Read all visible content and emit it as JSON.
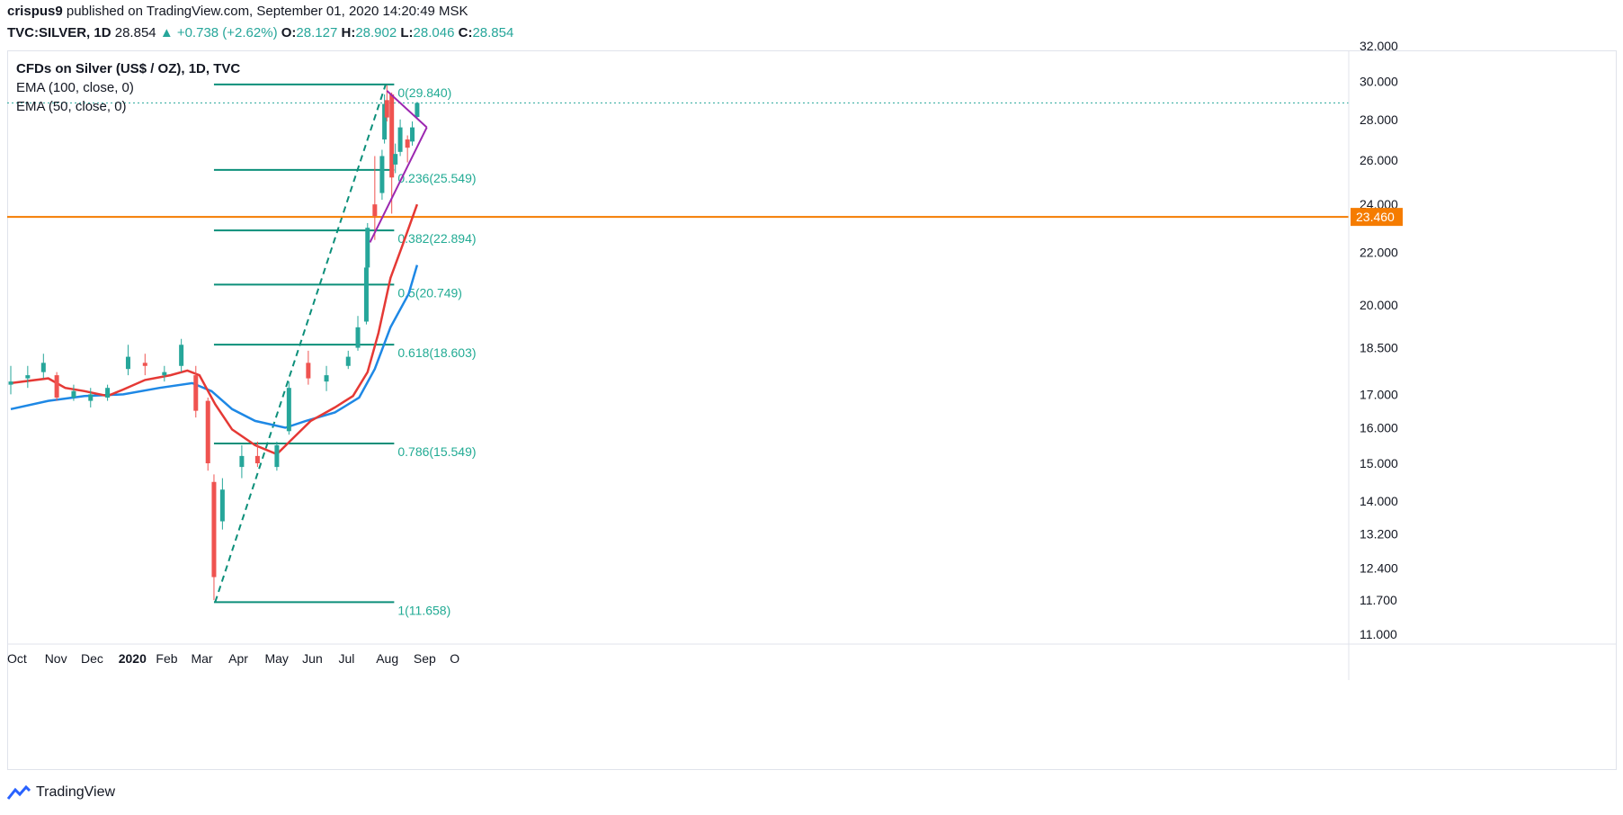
{
  "header": {
    "line1_user": "crispus9",
    "line1_rest": " published on TradingView.com, September 01, 2020 14:20:49 MSK",
    "symbol": "TVC:SILVER, 1D",
    "last": "28.854",
    "change": "▲ +0.738 (+2.62%)",
    "o_label": "O:",
    "o": "28.127",
    "h_label": "H:",
    "h": "28.902",
    "l_label": "L:",
    "l": "28.046",
    "c_label": "C:",
    "c": "28.854"
  },
  "legend": {
    "title": "CFDs on Silver (US$ / OZ), 1D, TVC",
    "ema100": "EMA (100, close, 0)",
    "ema50": "EMA (50, close, 0)"
  },
  "footer": {
    "brand": "TradingView"
  },
  "colors": {
    "up": "#26a69a",
    "down": "#ef5350",
    "ema50": "#e53935",
    "ema100": "#1e88e5",
    "fib": "#0c8f7a",
    "horizontal": "#f57c00",
    "triangle": "#9c27b0",
    "last_price": "#26a69a"
  },
  "chart_data": {
    "type": "candlestick",
    "y_axis_ticks": [
      "32.000",
      "30.000",
      "28.000",
      "26.000",
      "24.000",
      "22.000",
      "20.000",
      "18.500",
      "17.000",
      "16.000",
      "15.000",
      "14.000",
      "13.200",
      "12.400",
      "11.700",
      "11.000"
    ],
    "y_scale": "log",
    "x_axis_labels": [
      "Oct",
      "Nov",
      "Dec",
      "2020",
      "Feb",
      "Mar",
      "Apr",
      "May",
      "Jun",
      "Jul",
      "Aug",
      "Sep",
      "O"
    ],
    "horizontal_line": {
      "value": 23.46,
      "label": "23.460"
    },
    "last_price": 28.854,
    "fibonacci": [
      {
        "level": "0",
        "value": 29.84,
        "label": "0(29.840)"
      },
      {
        "level": "0.236",
        "value": 25.549,
        "label": "0.236(25.549)"
      },
      {
        "level": "0.382",
        "value": 22.894,
        "label": "0.382(22.894)"
      },
      {
        "level": "0.5",
        "value": 20.749,
        "label": "0.5(20.749)"
      },
      {
        "level": "0.618",
        "value": 18.603,
        "label": "0.618(18.603)"
      },
      {
        "level": "0.786",
        "value": 15.549,
        "label": "0.786(15.549)"
      },
      {
        "level": "1",
        "value": 11.658,
        "label": "1(11.658)"
      }
    ],
    "fib_trend": {
      "from": {
        "date": "2020-03-18",
        "price": 11.658
      },
      "to": {
        "date": "2020-08-06",
        "price": 29.84
      }
    },
    "triangle": {
      "upper": [
        {
          "date": "2020-08-07",
          "price": 29.5
        },
        {
          "date": "2020-09-09",
          "price": 27.6
        }
      ],
      "lower": [
        {
          "date": "2020-07-24",
          "price": 22.4
        },
        {
          "date": "2020-09-09",
          "price": 27.6
        }
      ]
    },
    "ema50": [
      {
        "date": "2019-10-01",
        "v": 17.35
      },
      {
        "date": "2019-11-01",
        "v": 17.5
      },
      {
        "date": "2019-11-15",
        "v": 17.2
      },
      {
        "date": "2019-12-01",
        "v": 17.1
      },
      {
        "date": "2019-12-20",
        "v": 16.95
      },
      {
        "date": "2020-01-02",
        "v": 17.15
      },
      {
        "date": "2020-01-20",
        "v": 17.45
      },
      {
        "date": "2020-02-10",
        "v": 17.6
      },
      {
        "date": "2020-02-24",
        "v": 17.75
      },
      {
        "date": "2020-03-05",
        "v": 17.6
      },
      {
        "date": "2020-03-18",
        "v": 16.7
      },
      {
        "date": "2020-04-01",
        "v": 15.95
      },
      {
        "date": "2020-04-20",
        "v": 15.5
      },
      {
        "date": "2020-05-08",
        "v": 15.25
      },
      {
        "date": "2020-05-20",
        "v": 15.65
      },
      {
        "date": "2020-06-05",
        "v": 16.2
      },
      {
        "date": "2020-06-25",
        "v": 16.6
      },
      {
        "date": "2020-07-10",
        "v": 16.95
      },
      {
        "date": "2020-07-22",
        "v": 17.7
      },
      {
        "date": "2020-07-31",
        "v": 19.0
      },
      {
        "date": "2020-08-10",
        "v": 21.0
      },
      {
        "date": "2020-08-20",
        "v": 22.3
      },
      {
        "date": "2020-09-01",
        "v": 24.0
      }
    ],
    "ema100": [
      {
        "date": "2019-10-01",
        "v": 16.55
      },
      {
        "date": "2019-11-01",
        "v": 16.8
      },
      {
        "date": "2019-12-01",
        "v": 16.95
      },
      {
        "date": "2020-01-02",
        "v": 17.0
      },
      {
        "date": "2020-02-01",
        "v": 17.2
      },
      {
        "date": "2020-02-28",
        "v": 17.35
      },
      {
        "date": "2020-03-15",
        "v": 17.1
      },
      {
        "date": "2020-04-01",
        "v": 16.55
      },
      {
        "date": "2020-04-20",
        "v": 16.2
      },
      {
        "date": "2020-05-15",
        "v": 16.0
      },
      {
        "date": "2020-06-01",
        "v": 16.2
      },
      {
        "date": "2020-06-25",
        "v": 16.45
      },
      {
        "date": "2020-07-15",
        "v": 16.9
      },
      {
        "date": "2020-07-28",
        "v": 17.8
      },
      {
        "date": "2020-08-10",
        "v": 19.2
      },
      {
        "date": "2020-08-25",
        "v": 20.4
      },
      {
        "date": "2020-09-01",
        "v": 21.5
      }
    ],
    "candles": [
      {
        "date": "2019-10-01",
        "o": 17.3,
        "h": 17.9,
        "l": 17.0,
        "c": 17.4
      },
      {
        "date": "2019-10-15",
        "o": 17.5,
        "h": 17.9,
        "l": 17.2,
        "c": 17.6
      },
      {
        "date": "2019-10-28",
        "o": 17.7,
        "h": 18.3,
        "l": 17.5,
        "c": 18.0
      },
      {
        "date": "2019-11-08",
        "o": 17.6,
        "h": 17.7,
        "l": 16.8,
        "c": 16.9
      },
      {
        "date": "2019-11-22",
        "o": 16.9,
        "h": 17.3,
        "l": 16.8,
        "c": 17.1
      },
      {
        "date": "2019-12-06",
        "o": 16.8,
        "h": 17.2,
        "l": 16.6,
        "c": 17.0
      },
      {
        "date": "2019-12-20",
        "o": 16.9,
        "h": 17.3,
        "l": 16.8,
        "c": 17.2
      },
      {
        "date": "2020-01-06",
        "o": 17.8,
        "h": 18.6,
        "l": 17.6,
        "c": 18.2
      },
      {
        "date": "2020-01-20",
        "o": 18.0,
        "h": 18.3,
        "l": 17.6,
        "c": 17.9
      },
      {
        "date": "2020-02-05",
        "o": 17.6,
        "h": 17.9,
        "l": 17.4,
        "c": 17.7
      },
      {
        "date": "2020-02-19",
        "o": 17.9,
        "h": 18.8,
        "l": 17.7,
        "c": 18.6
      },
      {
        "date": "2020-03-02",
        "o": 17.6,
        "h": 17.9,
        "l": 16.3,
        "c": 16.5
      },
      {
        "date": "2020-03-12",
        "o": 16.8,
        "h": 16.9,
        "l": 14.8,
        "c": 15.0
      },
      {
        "date": "2020-03-17",
        "o": 14.5,
        "h": 14.7,
        "l": 11.7,
        "c": 12.2
      },
      {
        "date": "2020-03-24",
        "o": 13.5,
        "h": 14.6,
        "l": 13.3,
        "c": 14.3
      },
      {
        "date": "2020-04-09",
        "o": 14.9,
        "h": 15.5,
        "l": 14.6,
        "c": 15.2
      },
      {
        "date": "2020-04-22",
        "o": 15.2,
        "h": 15.6,
        "l": 14.9,
        "c": 15.0
      },
      {
        "date": "2020-05-08",
        "o": 14.9,
        "h": 15.6,
        "l": 14.8,
        "c": 15.5
      },
      {
        "date": "2020-05-18",
        "o": 15.9,
        "h": 17.4,
        "l": 15.8,
        "c": 17.2
      },
      {
        "date": "2020-06-03",
        "o": 18.0,
        "h": 18.4,
        "l": 17.3,
        "c": 17.5
      },
      {
        "date": "2020-06-18",
        "o": 17.4,
        "h": 17.9,
        "l": 17.1,
        "c": 17.6
      },
      {
        "date": "2020-07-06",
        "o": 17.9,
        "h": 18.4,
        "l": 17.8,
        "c": 18.2
      },
      {
        "date": "2020-07-14",
        "o": 18.5,
        "h": 19.6,
        "l": 18.4,
        "c": 19.2
      },
      {
        "date": "2020-07-21",
        "o": 19.4,
        "h": 21.6,
        "l": 19.3,
        "c": 21.4
      },
      {
        "date": "2020-07-22",
        "o": 21.4,
        "h": 23.2,
        "l": 21.2,
        "c": 23.0
      },
      {
        "date": "2020-07-28",
        "o": 24.0,
        "h": 26.2,
        "l": 22.5,
        "c": 23.5
      },
      {
        "date": "2020-08-03",
        "o": 24.5,
        "h": 26.5,
        "l": 24.2,
        "c": 26.2
      },
      {
        "date": "2020-08-05",
        "o": 27.0,
        "h": 29.3,
        "l": 26.8,
        "c": 28.8
      },
      {
        "date": "2020-08-07",
        "o": 29.0,
        "h": 29.8,
        "l": 27.9,
        "c": 28.1
      },
      {
        "date": "2020-08-11",
        "o": 29.3,
        "h": 29.4,
        "l": 23.6,
        "c": 25.2
      },
      {
        "date": "2020-08-14",
        "o": 25.8,
        "h": 26.8,
        "l": 25.4,
        "c": 26.3
      },
      {
        "date": "2020-08-18",
        "o": 26.4,
        "h": 28.0,
        "l": 26.2,
        "c": 27.6
      },
      {
        "date": "2020-08-24",
        "o": 27.0,
        "h": 27.2,
        "l": 25.9,
        "c": 26.6
      },
      {
        "date": "2020-08-28",
        "o": 26.9,
        "h": 27.9,
        "l": 26.7,
        "c": 27.6
      },
      {
        "date": "2020-09-01",
        "o": 28.127,
        "h": 28.902,
        "l": 28.046,
        "c": 28.854
      }
    ]
  }
}
